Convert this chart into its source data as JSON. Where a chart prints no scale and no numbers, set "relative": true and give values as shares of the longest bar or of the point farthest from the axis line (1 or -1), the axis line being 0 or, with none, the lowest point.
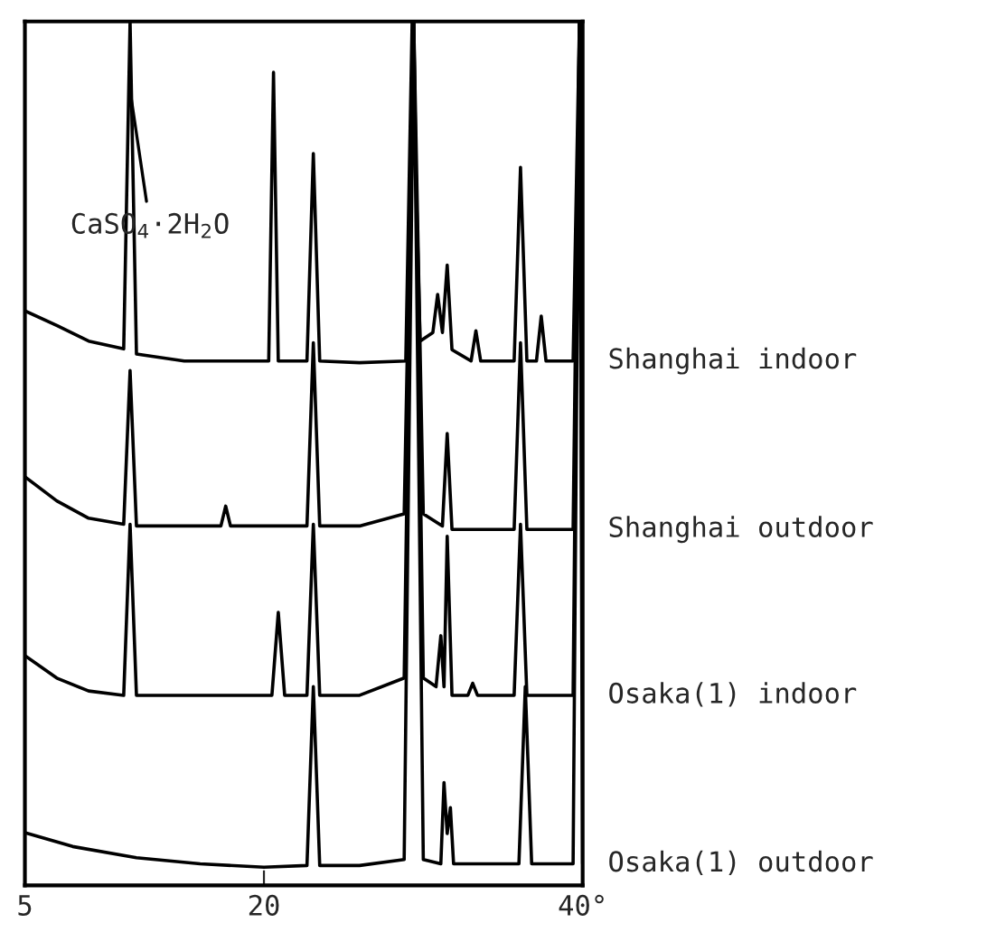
{
  "chart_data": {
    "type": "line",
    "relative": true,
    "xlim": [
      5,
      40
    ],
    "xticks": [
      5,
      20,
      {
        "value": 40,
        "label": "40°"
      }
    ],
    "tick_labels": "x",
    "annotations": [
      {
        "text": "CaSO$_{4}$·2H$_{2}$O",
        "x": 11.6,
        "y": 0.92
      }
    ],
    "series": [
      {
        "name": "Shanghai indoor",
        "color": "#000000",
        "x": [
          5,
          7,
          9,
          11.2,
          11.6,
          12.0,
          15,
          18,
          20.3,
          20.6,
          20.9,
          22.7,
          23.1,
          23.5,
          26,
          28.9,
          29.3,
          29.8,
          30.6,
          30.9,
          31.2,
          31.5,
          31.8,
          33.0,
          33.3,
          33.6,
          35.7,
          36.1,
          36.5,
          37.1,
          37.4,
          37.7,
          39.4,
          39.8,
          40
        ],
        "values": [
          0.665,
          0.648,
          0.63,
          0.621,
          1.0,
          0.615,
          0.607,
          0.607,
          0.607,
          0.941,
          0.607,
          0.607,
          0.847,
          0.607,
          0.605,
          0.607,
          1.0,
          0.63,
          0.64,
          0.684,
          0.64,
          0.718,
          0.62,
          0.607,
          0.642,
          0.607,
          0.607,
          0.831,
          0.607,
          0.607,
          0.659,
          0.607,
          0.607,
          1.0,
          0.607
        ]
      },
      {
        "name": "Shanghai outdoor",
        "color": "#000000",
        "x": [
          5,
          7,
          9,
          11.2,
          11.6,
          12.0,
          15,
          17.3,
          17.6,
          17.9,
          20,
          22.7,
          23.1,
          23.5,
          26,
          28.8,
          29.4,
          30.0,
          31.2,
          31.5,
          31.8,
          34,
          35.7,
          36.1,
          36.5,
          39.4,
          39.8,
          40
        ],
        "values": [
          0.473,
          0.445,
          0.425,
          0.418,
          0.596,
          0.416,
          0.416,
          0.416,
          0.439,
          0.416,
          0.416,
          0.416,
          0.628,
          0.416,
          0.416,
          0.43,
          1.0,
          0.43,
          0.416,
          0.523,
          0.412,
          0.412,
          0.412,
          0.628,
          0.412,
          0.412,
          1.0,
          0.412
        ]
      },
      {
        "name": "Osaka(1) indoor",
        "color": "#000000",
        "x": [
          5,
          7,
          9,
          11.2,
          11.6,
          12.0,
          15,
          18,
          20.5,
          20.9,
          21.3,
          22.7,
          23.1,
          23.5,
          26,
          28.8,
          29.4,
          30.0,
          30.8,
          31.1,
          31.3,
          31.5,
          31.8,
          32.8,
          33.1,
          33.4,
          35.7,
          36.1,
          36.5,
          39.4,
          39.8,
          40
        ],
        "values": [
          0.266,
          0.24,
          0.225,
          0.22,
          0.418,
          0.22,
          0.22,
          0.22,
          0.22,
          0.316,
          0.22,
          0.22,
          0.418,
          0.22,
          0.22,
          0.24,
          1.0,
          0.24,
          0.23,
          0.289,
          0.23,
          0.404,
          0.22,
          0.22,
          0.234,
          0.22,
          0.22,
          0.418,
          0.22,
          0.22,
          1.0,
          0.22
        ]
      },
      {
        "name": "Osaka(1) outdoor",
        "color": "#000000",
        "x": [
          5,
          8,
          12,
          16,
          20,
          22.7,
          23.1,
          23.5,
          26,
          28.8,
          29.4,
          30.0,
          31.1,
          31.3,
          31.5,
          31.7,
          31.9,
          34,
          36.0,
          36.4,
          36.8,
          39.4,
          39.8,
          40
        ],
        "values": [
          0.061,
          0.045,
          0.032,
          0.025,
          0.021,
          0.023,
          0.23,
          0.023,
          0.023,
          0.03,
          1.0,
          0.03,
          0.025,
          0.119,
          0.06,
          0.09,
          0.025,
          0.025,
          0.025,
          0.23,
          0.025,
          0.025,
          1.0,
          0.025
        ]
      }
    ]
  }
}
